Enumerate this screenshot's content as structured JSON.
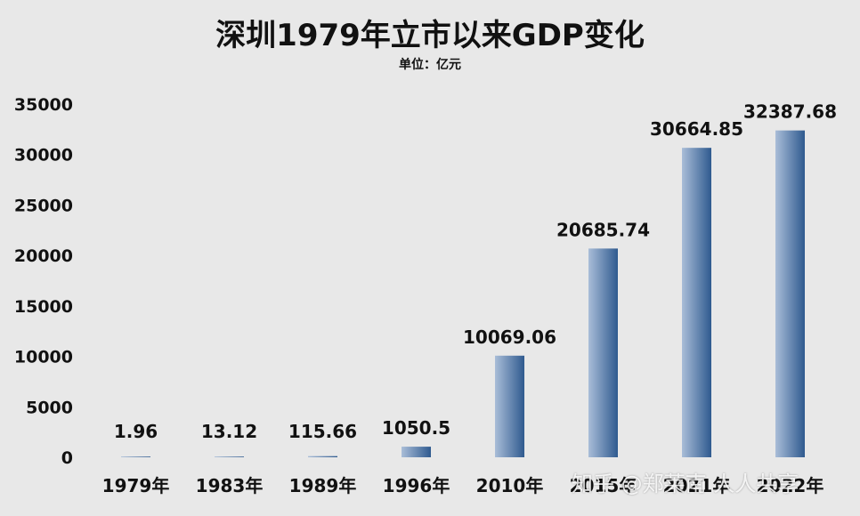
{
  "chart_data": {
    "type": "bar",
    "title": "深圳1979年立市以来GDP变化",
    "subtitle": "单位：亿元",
    "categories": [
      "1979年",
      "1983年",
      "1989年",
      "1996年",
      "2010年",
      "2015年",
      "2021年",
      "2022年"
    ],
    "values": [
      1.96,
      13.12,
      115.66,
      1050.5,
      10069.06,
      20685.74,
      30664.85,
      32387.68
    ],
    "value_labels": [
      "1.96",
      "13.12",
      "115.66",
      "1050.5",
      "10069.06",
      "20685.74",
      "30664.85",
      "32387.68"
    ],
    "ylim": [
      0,
      35000
    ],
    "yticks": [
      0,
      5000,
      10000,
      15000,
      20000,
      25000,
      30000,
      35000
    ],
    "grid": false,
    "legend": "none",
    "bar_color_dark": "#2f5a8f",
    "bar_color_light": "#a9bdd8"
  },
  "watermark": "知乎 @郑莱南 人人共享"
}
